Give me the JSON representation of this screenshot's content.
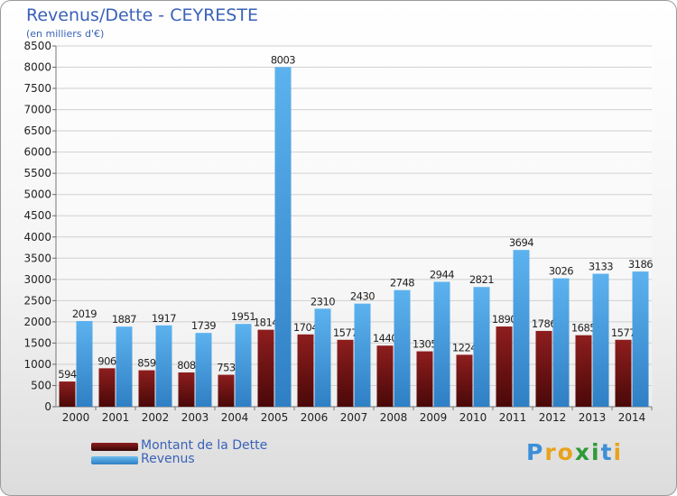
{
  "chart_data": {
    "type": "bar",
    "title": "Revenus/Dette - CEYRESTE",
    "subtitle": "(en milliers d'€)",
    "categories": [
      "2000",
      "2001",
      "2002",
      "2003",
      "2004",
      "2005",
      "2006",
      "2007",
      "2008",
      "2009",
      "2010",
      "2011",
      "2012",
      "2013",
      "2014"
    ],
    "series": [
      {
        "name": "Montant de la Dette",
        "color": "#8b1a1a",
        "values": [
          594,
          906,
          859,
          808,
          753,
          1814,
          1704,
          1577,
          1440,
          1305,
          1224,
          1890,
          1786,
          1685,
          1577
        ],
        "labels": [
          "594",
          "906",
          "859",
          "808",
          "753",
          "1814",
          "1704",
          "1577",
          "1440",
          "1305",
          "1224",
          "1890",
          "1786",
          "1685",
          "1577"
        ]
      },
      {
        "name": "Revenus",
        "color": "#4aa3e6",
        "values": [
          2019,
          1887,
          1917,
          1739,
          1951,
          8003,
          2310,
          2430,
          2748,
          2944,
          2821,
          3694,
          3026,
          3133,
          3186
        ],
        "labels": [
          "2019",
          "1887",
          "1917",
          "1739",
          "1951",
          "8003",
          "2310",
          "2430",
          "2748",
          "2944",
          "2821",
          "3694",
          "3026",
          "3133",
          "3186"
        ]
      }
    ],
    "ylim": [
      0,
      8500
    ],
    "yticks": [
      0,
      500,
      1000,
      1500,
      2000,
      2500,
      3000,
      3500,
      4000,
      4500,
      5000,
      5500,
      6000,
      6500,
      7000,
      7500,
      8000,
      8500
    ],
    "grid": true,
    "legend_position": "bottom-left"
  },
  "logo": {
    "text": "Proxiti",
    "colors": [
      "#3c8fd8",
      "#e9a21c",
      "#e9a21c",
      "#2f9a3a",
      "#2f9a3a",
      "#3c8fd8",
      "#e9a21c"
    ]
  }
}
